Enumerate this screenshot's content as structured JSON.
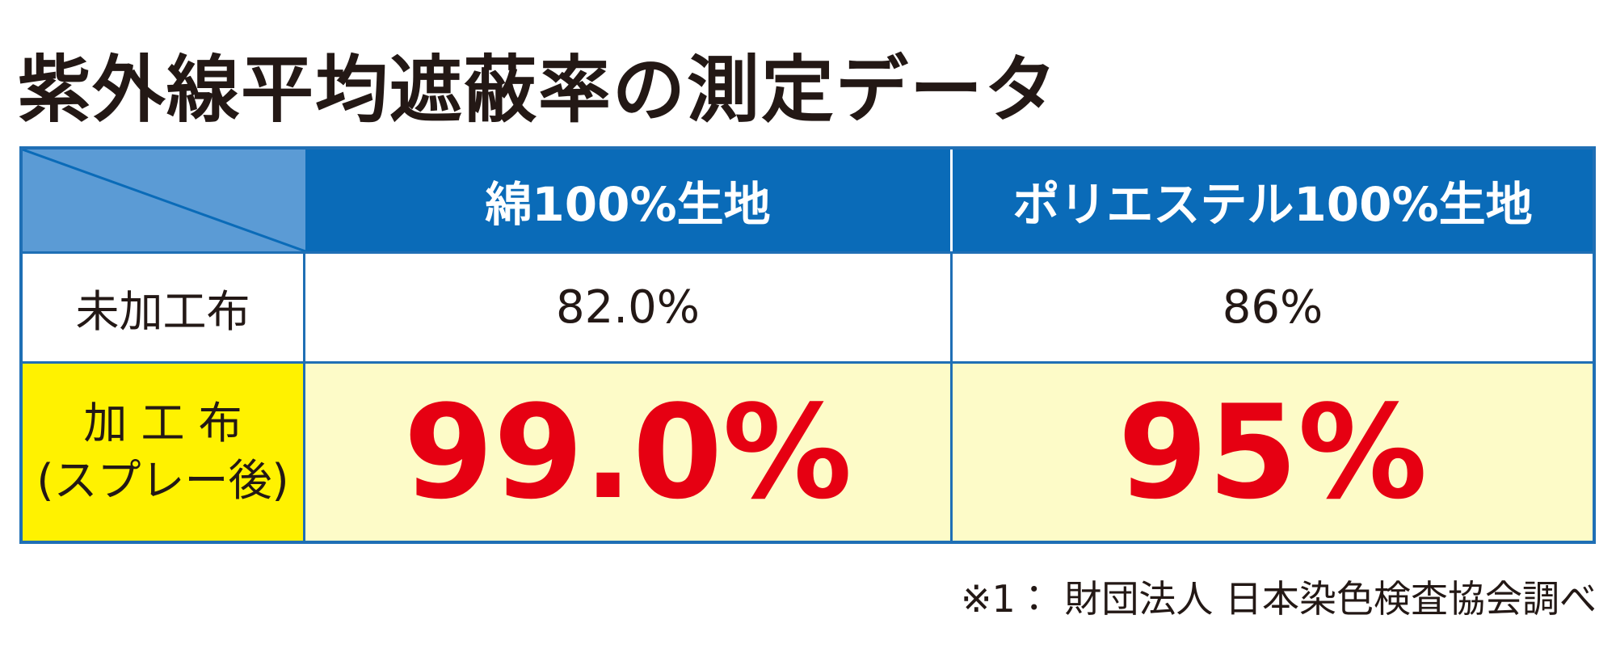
{
  "header": {
    "title": "紫外線平均遮蔽率の測定データ"
  },
  "table": {
    "columns": [
      "綿100%生地",
      "ポリエステル100%生地"
    ],
    "rows": [
      {
        "label": [
          "未加工布"
        ],
        "values": [
          "82.0%",
          "86%"
        ]
      },
      {
        "label": [
          "加 工 布",
          "(スプレー後)"
        ],
        "values": [
          "99.0%",
          "95%"
        ]
      }
    ]
  },
  "footnote": "※1： 財団法人 日本染色検査協会調べ"
}
